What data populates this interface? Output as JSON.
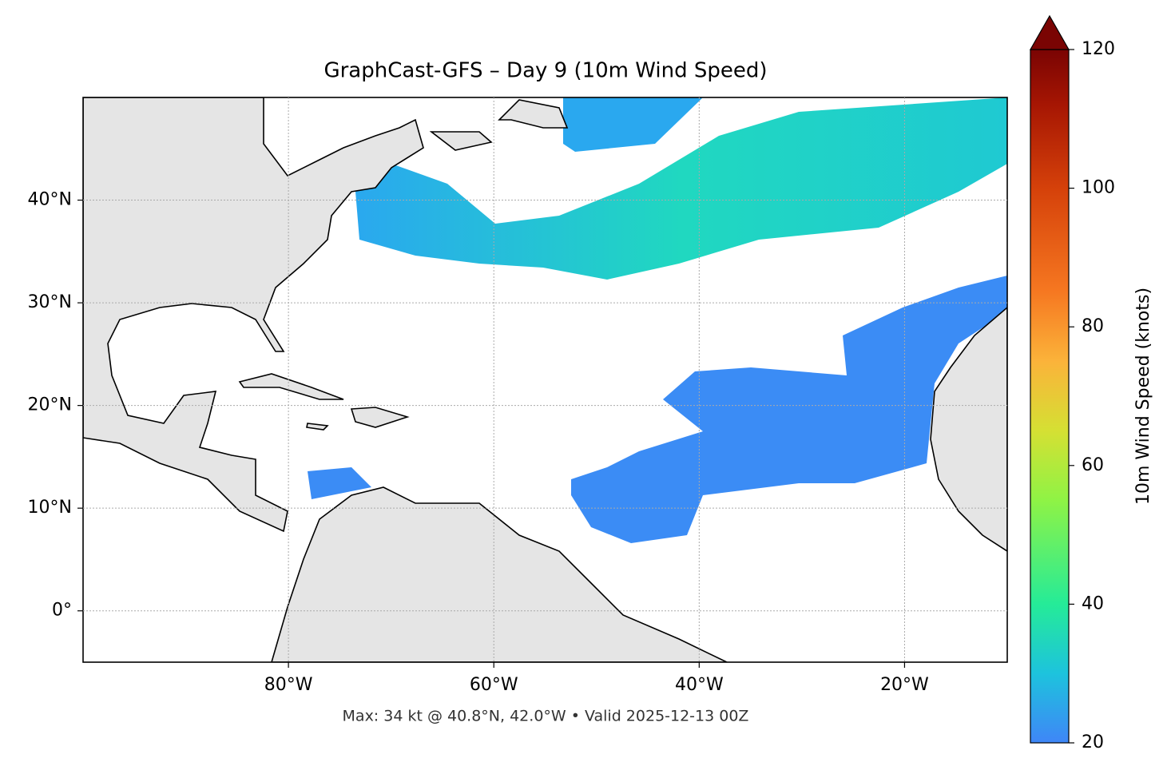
{
  "chart_data": {
    "type": "map",
    "title": "GraphCast-GFS – Day 9 (10m Wind Speed)",
    "subtitle": "Max: 34 kt @ 40.8°N, 42.0°W • Valid 2025-12-13 00Z",
    "xlim": [
      -100,
      -10
    ],
    "ylim": [
      -5,
      50
    ],
    "xticks": [
      {
        "value": -80,
        "label": "80°W"
      },
      {
        "value": -60,
        "label": "60°W"
      },
      {
        "value": -40,
        "label": "40°W"
      },
      {
        "value": -20,
        "label": "20°W"
      }
    ],
    "yticks": [
      {
        "value": 0,
        "label": "0°"
      },
      {
        "value": 10,
        "label": "10°N"
      },
      {
        "value": 20,
        "label": "20°N"
      },
      {
        "value": 30,
        "label": "30°N"
      },
      {
        "value": 40,
        "label": "40°N"
      }
    ],
    "grid": true,
    "colorbar": {
      "label": "10m Wind Speed (knots)",
      "lim": [
        20,
        120
      ],
      "ticks": [
        20,
        40,
        60,
        80,
        100,
        120
      ]
    }
  }
}
